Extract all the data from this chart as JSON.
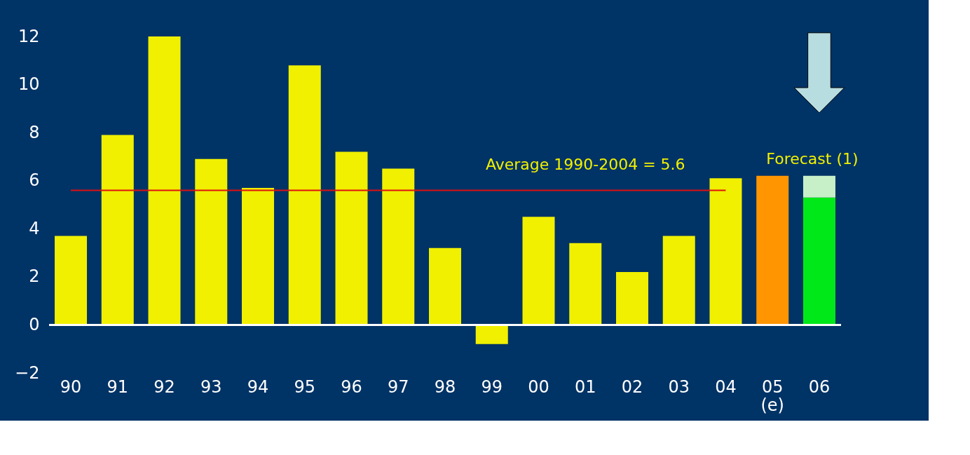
{
  "chart_data": {
    "type": "bar",
    "stacked": true,
    "categories": [
      "90",
      "91",
      "92",
      "93",
      "94",
      "95",
      "96",
      "97",
      "98",
      "99",
      "00",
      "01",
      "02",
      "03",
      "04",
      "05\n(e)",
      "06"
    ],
    "series": [
      {
        "colors": [
          "#f0f000",
          "#f0f000",
          "#f0f000",
          "#f0f000",
          "#f0f000",
          "#f0f000",
          "#f0f000",
          "#f0f000",
          "#f0f000",
          "#f0f000",
          "#f0f000",
          "#f0f000",
          "#f0f000",
          "#f0f000",
          "#f0f000",
          "#ff9500",
          "#00e818"
        ],
        "values": [
          3.7,
          7.9,
          12.0,
          6.9,
          5.7,
          10.8,
          7.2,
          6.5,
          3.2,
          -0.8,
          4.5,
          3.4,
          2.2,
          3.7,
          6.1,
          6.2,
          5.3
        ]
      },
      {
        "color": "#c8f0c8",
        "values": [
          null,
          null,
          null,
          null,
          null,
          null,
          null,
          null,
          null,
          null,
          null,
          null,
          null,
          null,
          null,
          null,
          0.9
        ]
      }
    ],
    "ylim": [
      -2,
      12
    ],
    "yticks": [
      -2,
      0,
      2,
      4,
      6,
      8,
      10,
      12
    ],
    "ref_lines": [
      {
        "axis": "y",
        "value": 5.6,
        "label": "Average 1990-2004 = 5.6",
        "color": "#e01010"
      }
    ],
    "annotations": [
      "Forecast (1)"
    ]
  }
}
